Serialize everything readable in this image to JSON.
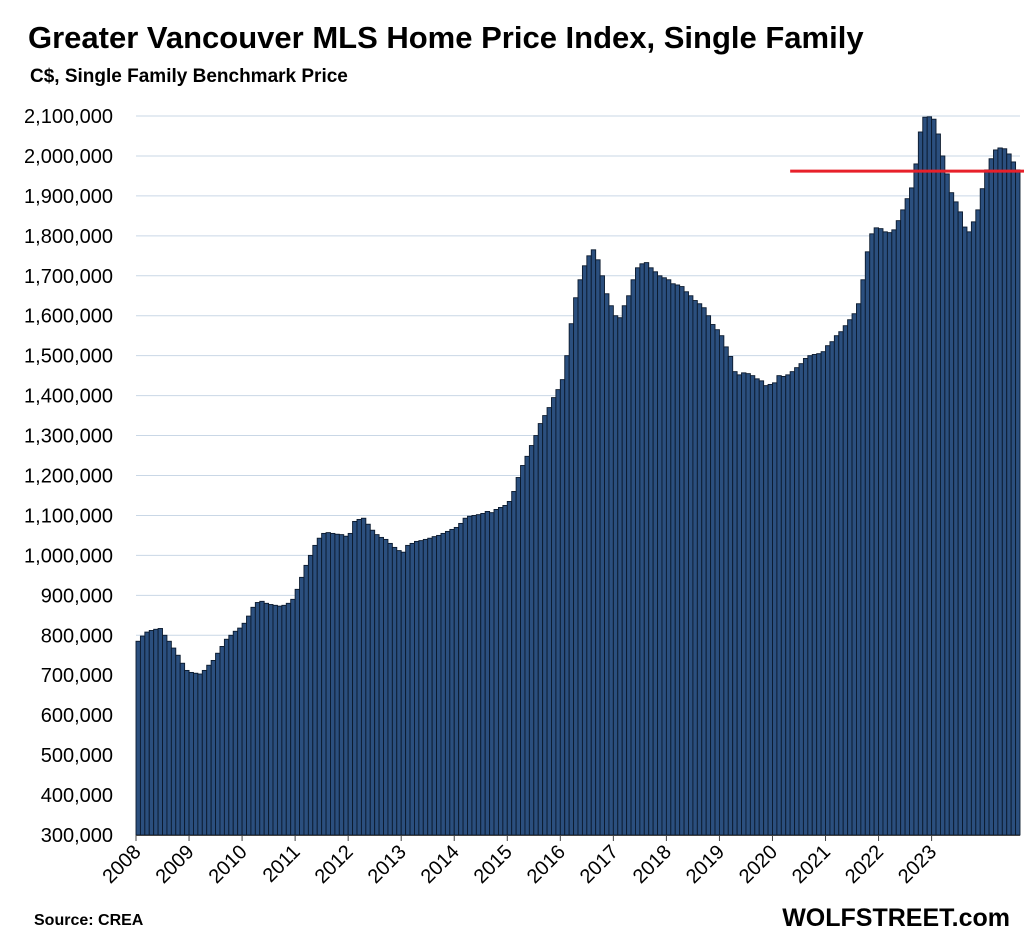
{
  "title": "Greater Vancouver MLS Home Price Index, Single Family",
  "subtitle": "C$, Single Family Benchmark Price",
  "source": "Source: CREA",
  "brand": "WOLFSTREET.com",
  "colors": {
    "bar_fill": "#2b4f7e",
    "bar_stroke": "#0b1a2e",
    "gridline": "#c9d7e6",
    "reference_line": "#e8202a"
  },
  "chart_data": {
    "type": "bar",
    "title": "Greater Vancouver MLS Home Price Index, Single Family",
    "subtitle": "C$, Single Family Benchmark Price",
    "xlabel": "",
    "ylabel": "",
    "ylim": [
      300000,
      2100000
    ],
    "yticks": [
      300000,
      400000,
      500000,
      600000,
      700000,
      800000,
      900000,
      1000000,
      1100000,
      1200000,
      1300000,
      1400000,
      1500000,
      1600000,
      1700000,
      1800000,
      1900000,
      2000000,
      2100000
    ],
    "ytick_labels": [
      "300,000",
      "400,000",
      "500,000",
      "600,000",
      "700,000",
      "800,000",
      "900,000",
      "1,000,000",
      "1,100,000",
      "1,200,000",
      "1,300,000",
      "1,400,000",
      "1,500,000",
      "1,600,000",
      "1,700,000",
      "1,800,000",
      "1,900,000",
      "2,000,000",
      "2,100,000"
    ],
    "xtick_labels": [
      "2008",
      "2009",
      "2010",
      "2011",
      "2012",
      "2013",
      "2014",
      "2015",
      "2016",
      "2017",
      "2018",
      "2019",
      "2020",
      "2021",
      "2022",
      "2023"
    ],
    "grid": true,
    "start": "2008-01",
    "frequency": "monthly",
    "series": [
      {
        "values": [
          785000,
          798000,
          808000,
          812000,
          815000,
          817000,
          800000,
          785000,
          768000,
          750000,
          730000,
          712000,
          707000,
          705000,
          703000,
          712000,
          725000,
          737000,
          755000,
          772000,
          790000,
          800000,
          810000,
          818000,
          830000,
          848000,
          870000,
          882000,
          885000,
          880000,
          877000,
          875000,
          873000,
          875000,
          880000,
          890000,
          915000,
          945000,
          975000,
          1000000,
          1025000,
          1043000,
          1055000,
          1057000,
          1055000,
          1053000,
          1052000,
          1048000,
          1055000,
          1085000,
          1090000,
          1093000,
          1078000,
          1063000,
          1052000,
          1045000,
          1040000,
          1030000,
          1020000,
          1012000,
          1008000,
          1025000,
          1030000,
          1035000,
          1037000,
          1040000,
          1043000,
          1047000,
          1050000,
          1055000,
          1060000,
          1065000,
          1070000,
          1080000,
          1093000,
          1098000,
          1100000,
          1102000,
          1105000,
          1110000,
          1107000,
          1115000,
          1120000,
          1125000,
          1135000,
          1160000,
          1195000,
          1225000,
          1248000,
          1275000,
          1300000,
          1330000,
          1350000,
          1370000,
          1395000,
          1415000,
          1440000,
          1500000,
          1580000,
          1645000,
          1690000,
          1725000,
          1750000,
          1765000,
          1740000,
          1700000,
          1655000,
          1625000,
          1600000,
          1595000,
          1625000,
          1650000,
          1690000,
          1720000,
          1730000,
          1733000,
          1720000,
          1710000,
          1700000,
          1695000,
          1690000,
          1680000,
          1677000,
          1673000,
          1660000,
          1650000,
          1638000,
          1630000,
          1620000,
          1600000,
          1578000,
          1565000,
          1550000,
          1522000,
          1498000,
          1460000,
          1452000,
          1457000,
          1455000,
          1450000,
          1442000,
          1437000,
          1425000,
          1428000,
          1432000,
          1450000,
          1448000,
          1452000,
          1460000,
          1470000,
          1480000,
          1493000,
          1500000,
          1503000,
          1505000,
          1510000,
          1525000,
          1535000,
          1550000,
          1560000,
          1575000,
          1590000,
          1605000,
          1630000,
          1690000,
          1760000,
          1805000,
          1820000,
          1818000,
          1810000,
          1808000,
          1815000,
          1838000,
          1865000,
          1893000,
          1920000,
          1980000,
          2060000,
          2097000,
          2098000,
          2092000,
          2055000,
          2000000,
          1955000,
          1908000,
          1885000,
          1860000,
          1822000,
          1810000,
          1835000,
          1865000,
          1918000,
          1965000,
          1993000,
          2015000,
          2020000,
          2018000,
          2005000,
          1985000,
          1965000
        ]
      }
    ],
    "reference_line": {
      "value": 1962000,
      "from": "2020-05"
    }
  }
}
